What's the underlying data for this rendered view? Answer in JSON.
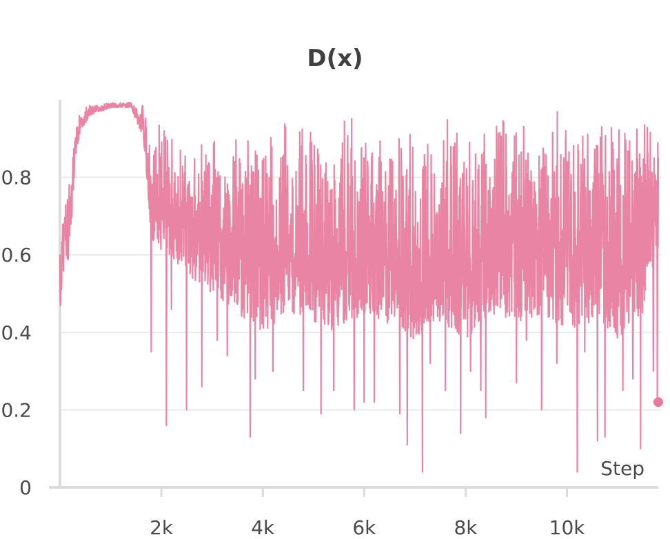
{
  "chart_data": {
    "type": "line",
    "title": "D(x)",
    "xlabel": "Step",
    "ylabel": "",
    "xlim": [
      0,
      11800
    ],
    "ylim": [
      0,
      1.0
    ],
    "x_ticks": [
      2000,
      4000,
      6000,
      8000,
      10000
    ],
    "x_tick_labels": [
      "2k",
      "4k",
      "6k",
      "8k",
      "10k"
    ],
    "y_ticks": [
      0,
      0.2,
      0.4,
      0.6,
      0.8
    ],
    "y_tick_labels": [
      "0",
      "0.2",
      "0.4",
      "0.6",
      "0.8"
    ],
    "grid": true,
    "legend": "none",
    "series": [
      {
        "color": "#e8799c",
        "envelope": {
          "x": [
            0,
            100,
            200,
            300,
            400,
            600,
            1000,
            1400,
            1650,
            1800,
            2100,
            2500,
            3000,
            3500,
            4000,
            4500,
            5000,
            5500,
            6000,
            6500,
            7000,
            7500,
            8000,
            8500,
            9000,
            9500,
            10000,
            10500,
            11000,
            11500,
            11800
          ],
          "high": [
            0.63,
            0.78,
            0.88,
            0.93,
            0.97,
            0.99,
            0.995,
            0.995,
            0.99,
            0.94,
            0.97,
            0.91,
            0.93,
            0.9,
            0.95,
            0.96,
            0.97,
            0.96,
            0.97,
            0.96,
            0.95,
            0.95,
            0.97,
            0.97,
            0.98,
            0.97,
            0.98,
            0.98,
            0.98,
            0.97,
            0.98
          ],
          "low": [
            0.45,
            0.6,
            0.57,
            0.85,
            0.92,
            0.96,
            0.98,
            0.98,
            0.9,
            0.63,
            0.6,
            0.55,
            0.5,
            0.45,
            0.4,
            0.45,
            0.42,
            0.4,
            0.45,
            0.42,
            0.38,
            0.43,
            0.38,
            0.45,
            0.42,
            0.45,
            0.4,
            0.42,
            0.38,
            0.45,
            0.6
          ]
        },
        "dips": [
          [
            1800,
            0.35
          ],
          [
            2100,
            0.16
          ],
          [
            2200,
            0.46
          ],
          [
            2500,
            0.2
          ],
          [
            2800,
            0.26
          ],
          [
            3100,
            0.38
          ],
          [
            3300,
            0.34
          ],
          [
            3750,
            0.13
          ],
          [
            3850,
            0.28
          ],
          [
            4200,
            0.3
          ],
          [
            4800,
            0.25
          ],
          [
            5150,
            0.19
          ],
          [
            5400,
            0.25
          ],
          [
            5800,
            0.2
          ],
          [
            6000,
            0.22
          ],
          [
            6200,
            0.22
          ],
          [
            6700,
            0.19
          ],
          [
            6850,
            0.11
          ],
          [
            7150,
            0.04
          ],
          [
            7300,
            0.32
          ],
          [
            7600,
            0.25
          ],
          [
            7900,
            0.14
          ],
          [
            8100,
            0.3
          ],
          [
            8300,
            0.25
          ],
          [
            8400,
            0.18
          ],
          [
            9000,
            0.27
          ],
          [
            9200,
            0.38
          ],
          [
            9500,
            0.2
          ],
          [
            9800,
            0.32
          ],
          [
            10200,
            0.04
          ],
          [
            10350,
            0.35
          ],
          [
            10600,
            0.12
          ],
          [
            10750,
            0.13
          ],
          [
            11100,
            0.25
          ],
          [
            11300,
            0.28
          ],
          [
            11450,
            0.1
          ],
          [
            11700,
            0.3
          ],
          [
            11780,
            0.22
          ]
        ],
        "last_point": [
          11800,
          0.22
        ]
      }
    ]
  }
}
